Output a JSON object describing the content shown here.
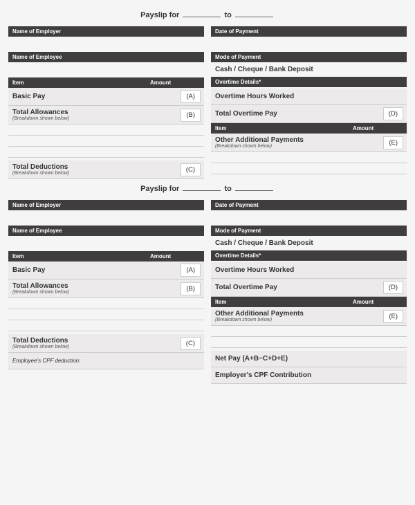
{
  "title_prefix": "Payslip for",
  "title_to": "to",
  "labels": {
    "employer": "Name of Employer",
    "employee": "Name of Employee",
    "date_of_payment": "Date of Payment",
    "mode_of_payment": "Mode of Payment",
    "payment_modes": "Cash  /  Cheque  /  Bank Deposit",
    "item": "Item",
    "amount": "Amount",
    "overtime_details": "Overtime Details*",
    "basic_pay": "Basic Pay",
    "total_allowances": "Total Allowances",
    "breakdown": "(Breakdown shown below)",
    "total_deductions": "Total Deductions",
    "overtime_hours": "Overtime Hours Worked",
    "total_overtime_pay": "Total Overtime Pay",
    "other_additional": "Other Additional Payments",
    "net_pay": "Net Pay (A+B−C+D+E)",
    "employer_cpf": "Employer's CPF Contribution",
    "employee_cpf": "Employee's CPF deduction:"
  },
  "tags": {
    "A": "(A)",
    "B": "(B)",
    "C": "(C)",
    "D": "(D)",
    "E": "(E)"
  },
  "colors": {
    "bar_bg": "#403d3e",
    "row_bg": "#eceaea",
    "border": "#cccccc",
    "page_bg": "#f5f5f5"
  }
}
